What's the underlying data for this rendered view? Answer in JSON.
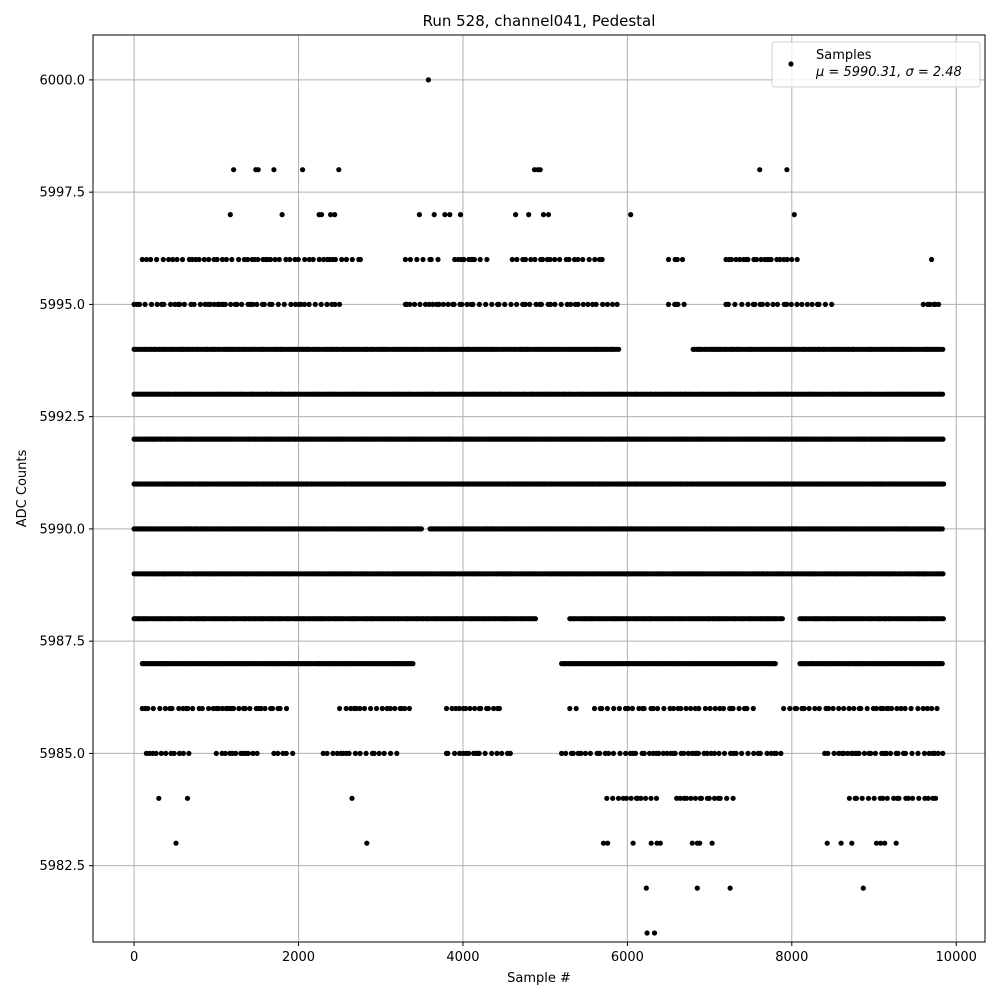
{
  "chart_data": {
    "type": "scatter",
    "title": "Run 528, channel041, Pedestal",
    "xlabel": "Sample #",
    "ylabel": "ADC Counts",
    "xlim": [
      -500,
      10350
    ],
    "ylim": [
      5980.8,
      6001.0
    ],
    "xticks": [
      0,
      2000,
      4000,
      6000,
      8000,
      10000
    ],
    "xtick_labels": [
      "0",
      "2000",
      "4000",
      "6000",
      "8000",
      "10000"
    ],
    "yticks": [
      5982.5,
      5985.0,
      5987.5,
      5990.0,
      5992.5,
      5995.0,
      5997.5,
      6000.0
    ],
    "ytick_labels": [
      "5982.5",
      "5985.0",
      "5987.5",
      "5990.0",
      "5992.5",
      "5995.0",
      "5997.5",
      "6000.0"
    ],
    "grid": true,
    "legend_position": "top-right",
    "legend": {
      "series_name": "Samples",
      "stats_text": "μ = 5990.31, σ = 2.48"
    },
    "marker_color": "#000000",
    "series": [
      {
        "name": "Samples",
        "x_range": [
          0,
          9850
        ],
        "dense_levels": [
          {
            "y": 5993,
            "ranges": [
              [
                0,
                9850
              ]
            ]
          },
          {
            "y": 5992,
            "ranges": [
              [
                0,
                9850
              ]
            ]
          },
          {
            "y": 5991,
            "ranges": [
              [
                0,
                9850
              ]
            ]
          },
          {
            "y": 5990,
            "ranges": [
              [
                0,
                3500
              ],
              [
                3600,
                9850
              ]
            ]
          },
          {
            "y": 5989,
            "ranges": [
              [
                0,
                9850
              ]
            ]
          },
          {
            "y": 5994,
            "ranges": [
              [
                0,
                5900
              ],
              [
                6800,
                9850
              ]
            ]
          },
          {
            "y": 5988,
            "ranges": [
              [
                0,
                4900
              ],
              [
                5300,
                7900
              ],
              [
                8100,
                9850
              ]
            ]
          },
          {
            "y": 5987,
            "ranges": [
              [
                100,
                3400
              ],
              [
                5200,
                7800
              ],
              [
                8100,
                9850
              ]
            ]
          }
        ],
        "sparse_levels": [
          {
            "y": 5995,
            "ranges": [
              [
                0,
                2500
              ],
              [
                3300,
                5900
              ],
              [
                6500,
                6700
              ],
              [
                7200,
                8500
              ],
              [
                9600,
                9850
              ]
            ]
          },
          {
            "y": 5996,
            "ranges": [
              [
                100,
                2800
              ],
              [
                3300,
                3700
              ],
              [
                3900,
                4300
              ],
              [
                4600,
                5700
              ],
              [
                6500,
                6700
              ],
              [
                7200,
                8100
              ],
              [
                9700,
                9700
              ]
            ]
          },
          {
            "y": 5986,
            "ranges": [
              [
                100,
                1900
              ],
              [
                2500,
                3400
              ],
              [
                3800,
                4500
              ],
              [
                5300,
                5400
              ],
              [
                5600,
                7600
              ],
              [
                7900,
                9850
              ]
            ]
          },
          {
            "y": 5985,
            "ranges": [
              [
                150,
                700
              ],
              [
                1000,
                1500
              ],
              [
                1700,
                1950
              ],
              [
                2300,
                3200
              ],
              [
                3800,
                4600
              ],
              [
                5200,
                7900
              ],
              [
                8400,
                9850
              ]
            ]
          },
          {
            "y": 5984,
            "ranges": [
              [
                300,
                300
              ],
              [
                650,
                650
              ],
              [
                2650,
                2650
              ],
              [
                5750,
                6400
              ],
              [
                6600,
                7300
              ],
              [
                8700,
                9750
              ]
            ]
          }
        ],
        "points": [
          {
            "x": 3580,
            "y": 6000
          },
          {
            "x": 1210,
            "y": 5998
          },
          {
            "x": 1480,
            "y": 5998
          },
          {
            "x": 1510,
            "y": 5998
          },
          {
            "x": 1700,
            "y": 5998
          },
          {
            "x": 2050,
            "y": 5998
          },
          {
            "x": 2490,
            "y": 5998
          },
          {
            "x": 4870,
            "y": 5998
          },
          {
            "x": 4910,
            "y": 5998
          },
          {
            "x": 4940,
            "y": 5998
          },
          {
            "x": 7610,
            "y": 5998
          },
          {
            "x": 7940,
            "y": 5998
          },
          {
            "x": 1170,
            "y": 5997
          },
          {
            "x": 1800,
            "y": 5997
          },
          {
            "x": 2250,
            "y": 5997
          },
          {
            "x": 2280,
            "y": 5997
          },
          {
            "x": 2390,
            "y": 5997
          },
          {
            "x": 2440,
            "y": 5997
          },
          {
            "x": 3470,
            "y": 5997
          },
          {
            "x": 3650,
            "y": 5997
          },
          {
            "x": 3780,
            "y": 5997
          },
          {
            "x": 3840,
            "y": 5997
          },
          {
            "x": 3970,
            "y": 5997
          },
          {
            "x": 4640,
            "y": 5997
          },
          {
            "x": 4800,
            "y": 5997
          },
          {
            "x": 4980,
            "y": 5997
          },
          {
            "x": 5040,
            "y": 5997
          },
          {
            "x": 6040,
            "y": 5997
          },
          {
            "x": 8030,
            "y": 5997
          },
          {
            "x": 510,
            "y": 5983
          },
          {
            "x": 2830,
            "y": 5983
          },
          {
            "x": 5710,
            "y": 5983
          },
          {
            "x": 5760,
            "y": 5983
          },
          {
            "x": 6070,
            "y": 5983
          },
          {
            "x": 6290,
            "y": 5983
          },
          {
            "x": 6360,
            "y": 5983
          },
          {
            "x": 6400,
            "y": 5983
          },
          {
            "x": 6790,
            "y": 5983
          },
          {
            "x": 6850,
            "y": 5983
          },
          {
            "x": 6880,
            "y": 5983
          },
          {
            "x": 7030,
            "y": 5983
          },
          {
            "x": 8430,
            "y": 5983
          },
          {
            "x": 8600,
            "y": 5983
          },
          {
            "x": 8730,
            "y": 5983
          },
          {
            "x": 9030,
            "y": 5983
          },
          {
            "x": 9080,
            "y": 5983
          },
          {
            "x": 9130,
            "y": 5983
          },
          {
            "x": 9270,
            "y": 5983
          },
          {
            "x": 6230,
            "y": 5982
          },
          {
            "x": 6850,
            "y": 5982
          },
          {
            "x": 7250,
            "y": 5982
          },
          {
            "x": 8870,
            "y": 5982
          },
          {
            "x": 6240,
            "y": 5981
          },
          {
            "x": 6330,
            "y": 5981
          }
        ]
      }
    ]
  }
}
